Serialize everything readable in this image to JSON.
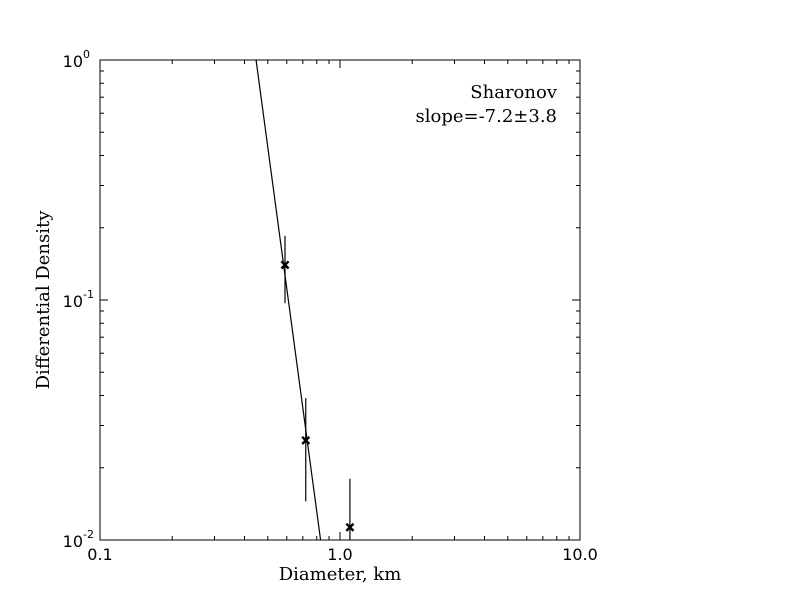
{
  "chart_data": {
    "type": "scatter",
    "title": "",
    "xlabel": "Diameter, km",
    "ylabel": "Differential Density",
    "xscale": "log",
    "yscale": "log",
    "xlim": [
      0.1,
      10.0
    ],
    "ylim": [
      0.01,
      1.0
    ],
    "grid": false,
    "x_tick_labels": [
      "0.1",
      "1.0",
      "10.0"
    ],
    "y_tick_labels": [
      {
        "base": "10",
        "exp": "-2"
      },
      {
        "base": "10",
        "exp": "-1"
      },
      {
        "base": "10",
        "exp": "0"
      }
    ],
    "annotation": {
      "name": "Sharonov",
      "slope_text": "slope=-7.2±3.8"
    },
    "points": [
      {
        "x": 0.59,
        "y": 0.14,
        "y_low": 0.097,
        "y_high": 0.185
      },
      {
        "x": 0.72,
        "y": 0.026,
        "y_low": 0.0145,
        "y_high": 0.039
      },
      {
        "x": 1.1,
        "y": 0.0113,
        "y_low": 0.005,
        "y_high": 0.018
      }
    ],
    "fit_line": {
      "x": [
        0.447,
        0.83
      ],
      "y": [
        1.0,
        0.01
      ]
    },
    "marker": "x",
    "color": "#000000"
  }
}
